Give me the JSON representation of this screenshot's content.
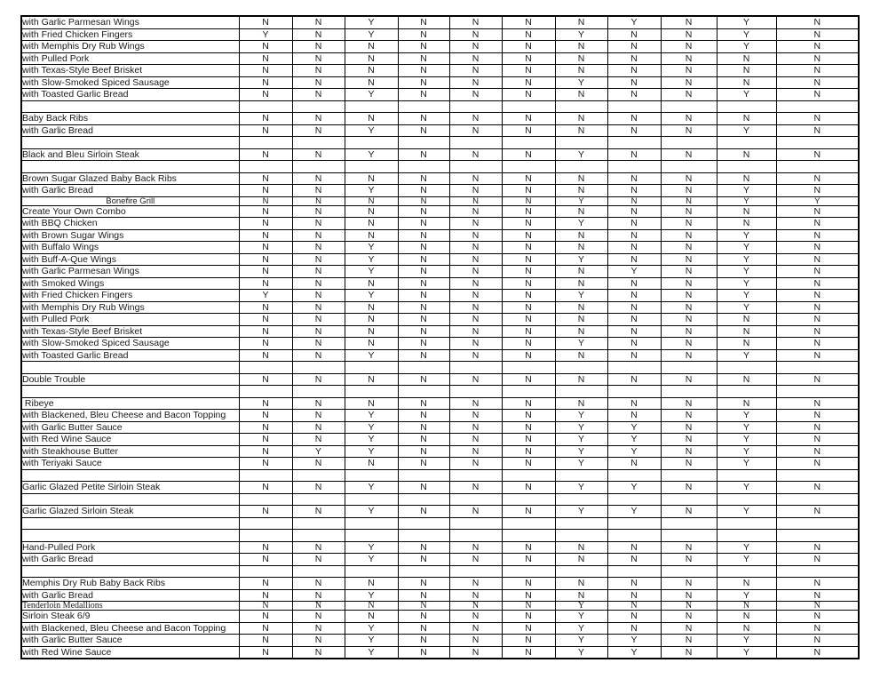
{
  "page": {
    "background_color": "#ffffff",
    "grid_color": "#000000"
  },
  "table": {
    "num_value_columns": 11,
    "rows": [
      {
        "type": "item",
        "label": "with Garlic Parmesan Wings",
        "values": [
          "N",
          "N",
          "Y",
          "N",
          "N",
          "N",
          "N",
          "Y",
          "N",
          "Y",
          "N"
        ]
      },
      {
        "type": "item",
        "label": "with Fried Chicken Fingers",
        "values": [
          "Y",
          "N",
          "Y",
          "N",
          "N",
          "N",
          "Y",
          "N",
          "N",
          "Y",
          "N"
        ]
      },
      {
        "type": "item",
        "label": "with Memphis Dry Rub Wings",
        "values": [
          "N",
          "N",
          "N",
          "N",
          "N",
          "N",
          "N",
          "N",
          "N",
          "Y",
          "N"
        ]
      },
      {
        "type": "item",
        "label": "with Pulled Pork",
        "values": [
          "N",
          "N",
          "N",
          "N",
          "N",
          "N",
          "N",
          "N",
          "N",
          "N",
          "N"
        ]
      },
      {
        "type": "item",
        "label": "with Texas-Style Beef Brisket",
        "values": [
          "N",
          "N",
          "N",
          "N",
          "N",
          "N",
          "N",
          "N",
          "N",
          "N",
          "N"
        ]
      },
      {
        "type": "item",
        "label": "with Slow-Smoked Spiced Sausage",
        "values": [
          "N",
          "N",
          "N",
          "N",
          "N",
          "N",
          "Y",
          "N",
          "N",
          "N",
          "N"
        ]
      },
      {
        "type": "item",
        "label": "with Toasted Garlic Bread",
        "values": [
          "N",
          "N",
          "Y",
          "N",
          "N",
          "N",
          "N",
          "N",
          "N",
          "Y",
          "N"
        ]
      },
      {
        "type": "blank",
        "label": ""
      },
      {
        "type": "item",
        "label": "Baby Back Ribs",
        "values": [
          "N",
          "N",
          "N",
          "N",
          "N",
          "N",
          "N",
          "N",
          "N",
          "N",
          "N"
        ]
      },
      {
        "type": "item",
        "label": "with Garlic Bread",
        "values": [
          "N",
          "N",
          "Y",
          "N",
          "N",
          "N",
          "N",
          "N",
          "N",
          "Y",
          "N"
        ]
      },
      {
        "type": "blank",
        "label": ""
      },
      {
        "type": "item",
        "label": "Black and Bleu Sirloin Steak",
        "values": [
          "N",
          "N",
          "Y",
          "N",
          "N",
          "N",
          "Y",
          "N",
          "N",
          "N",
          "N"
        ]
      },
      {
        "type": "blank",
        "label": ""
      },
      {
        "type": "item",
        "label": "Brown Sugar Glazed Baby Back Ribs",
        "values": [
          "N",
          "N",
          "N",
          "N",
          "N",
          "N",
          "N",
          "N",
          "N",
          "N",
          "N"
        ]
      },
      {
        "type": "item",
        "label": "with Garlic Bread",
        "values": [
          "N",
          "N",
          "Y",
          "N",
          "N",
          "N",
          "N",
          "N",
          "N",
          "Y",
          "N"
        ]
      },
      {
        "type": "section-center",
        "label": "Bonefire Grill",
        "values": [
          "N",
          "N",
          "N",
          "N",
          "N",
          "N",
          "Y",
          "N",
          "N",
          "Y",
          "Y"
        ]
      },
      {
        "type": "item",
        "label": "Create Your Own Combo",
        "values": [
          "N",
          "N",
          "N",
          "N",
          "N",
          "N",
          "N",
          "N",
          "N",
          "N",
          "N"
        ]
      },
      {
        "type": "item",
        "label": "with BBQ Chicken",
        "values": [
          "N",
          "N",
          "N",
          "N",
          "N",
          "N",
          "Y",
          "N",
          "N",
          "N",
          "N"
        ]
      },
      {
        "type": "item",
        "label": "with Brown Sugar Wings",
        "values": [
          "N",
          "N",
          "N",
          "N",
          "N",
          "N",
          "N",
          "N",
          "N",
          "Y",
          "N"
        ]
      },
      {
        "type": "item",
        "label": "with Buffalo Wings",
        "values": [
          "N",
          "N",
          "Y",
          "N",
          "N",
          "N",
          "N",
          "N",
          "N",
          "Y",
          "N"
        ]
      },
      {
        "type": "item",
        "label": "with Buff-A-Que Wings",
        "values": [
          "N",
          "N",
          "Y",
          "N",
          "N",
          "N",
          "Y",
          "N",
          "N",
          "Y",
          "N"
        ]
      },
      {
        "type": "item",
        "label": "with Garlic Parmesan Wings",
        "values": [
          "N",
          "N",
          "Y",
          "N",
          "N",
          "N",
          "N",
          "Y",
          "N",
          "Y",
          "N"
        ]
      },
      {
        "type": "item",
        "label": "with Smoked Wings",
        "values": [
          "N",
          "N",
          "N",
          "N",
          "N",
          "N",
          "N",
          "N",
          "N",
          "Y",
          "N"
        ]
      },
      {
        "type": "item",
        "label": "with Fried Chicken Fingers",
        "values": [
          "Y",
          "N",
          "Y",
          "N",
          "N",
          "N",
          "Y",
          "N",
          "N",
          "Y",
          "N"
        ]
      },
      {
        "type": "item",
        "label": "with Memphis Dry Rub Wings",
        "values": [
          "N",
          "N",
          "N",
          "N",
          "N",
          "N",
          "N",
          "N",
          "N",
          "Y",
          "N"
        ]
      },
      {
        "type": "item",
        "label": "with Pulled Pork",
        "values": [
          "N",
          "N",
          "N",
          "N",
          "N",
          "N",
          "N",
          "N",
          "N",
          "N",
          "N"
        ]
      },
      {
        "type": "item",
        "label": "with Texas-Style Beef Brisket",
        "values": [
          "N",
          "N",
          "N",
          "N",
          "N",
          "N",
          "N",
          "N",
          "N",
          "N",
          "N"
        ]
      },
      {
        "type": "item",
        "label": "with Slow-Smoked Spiced Sausage",
        "values": [
          "N",
          "N",
          "N",
          "N",
          "N",
          "N",
          "Y",
          "N",
          "N",
          "N",
          "N"
        ]
      },
      {
        "type": "item",
        "label": "with Toasted Garlic Bread",
        "values": [
          "N",
          "N",
          "Y",
          "N",
          "N",
          "N",
          "N",
          "N",
          "N",
          "Y",
          "N"
        ]
      },
      {
        "type": "blank",
        "label": ""
      },
      {
        "type": "item",
        "label": "Double Trouble",
        "values": [
          "N",
          "N",
          "N",
          "N",
          "N",
          "N",
          "N",
          "N",
          "N",
          "N",
          "N"
        ]
      },
      {
        "type": "blank",
        "label": ""
      },
      {
        "type": "item",
        "label": " Ribeye",
        "values": [
          "N",
          "N",
          "N",
          "N",
          "N",
          "N",
          "N",
          "N",
          "N",
          "N",
          "N"
        ]
      },
      {
        "type": "item",
        "label": "with Blackened, Bleu Cheese and Bacon Topping",
        "values": [
          "N",
          "N",
          "Y",
          "N",
          "N",
          "N",
          "Y",
          "N",
          "N",
          "Y",
          "N"
        ]
      },
      {
        "type": "item",
        "label": "with Garlic Butter Sauce",
        "values": [
          "N",
          "N",
          "Y",
          "N",
          "N",
          "N",
          "Y",
          "Y",
          "N",
          "Y",
          "N"
        ]
      },
      {
        "type": "item",
        "label": "with Red Wine Sauce",
        "values": [
          "N",
          "N",
          "Y",
          "N",
          "N",
          "N",
          "Y",
          "Y",
          "N",
          "Y",
          "N"
        ]
      },
      {
        "type": "item",
        "label": "with Steakhouse Butter",
        "values": [
          "N",
          "Y",
          "Y",
          "N",
          "N",
          "N",
          "Y",
          "Y",
          "N",
          "Y",
          "N"
        ]
      },
      {
        "type": "item",
        "label": "with Teriyaki Sauce",
        "values": [
          "N",
          "N",
          "N",
          "N",
          "N",
          "N",
          "Y",
          "N",
          "N",
          "Y",
          "N"
        ]
      },
      {
        "type": "blank",
        "label": ""
      },
      {
        "type": "item",
        "label": "Garlic Glazed Petite Sirloin Steak",
        "values": [
          "N",
          "N",
          "Y",
          "N",
          "N",
          "N",
          "Y",
          "Y",
          "N",
          "Y",
          "N"
        ]
      },
      {
        "type": "blank",
        "label": ""
      },
      {
        "type": "item",
        "label": "Garlic Glazed Sirloin Steak",
        "values": [
          "N",
          "N",
          "Y",
          "N",
          "N",
          "N",
          "Y",
          "Y",
          "N",
          "Y",
          "N"
        ]
      },
      {
        "type": "blank",
        "label": ""
      },
      {
        "type": "blank",
        "label": ""
      },
      {
        "type": "item",
        "label": "Hand-Pulled Pork",
        "values": [
          "N",
          "N",
          "Y",
          "N",
          "N",
          "N",
          "N",
          "N",
          "N",
          "Y",
          "N"
        ]
      },
      {
        "type": "item",
        "label": "with Garlic Bread",
        "values": [
          "N",
          "N",
          "Y",
          "N",
          "N",
          "N",
          "N",
          "N",
          "N",
          "Y",
          "N"
        ]
      },
      {
        "type": "blank",
        "label": ""
      },
      {
        "type": "item",
        "label": "Memphis Dry Rub Baby Back Ribs",
        "values": [
          "N",
          "N",
          "N",
          "N",
          "N",
          "N",
          "N",
          "N",
          "N",
          "N",
          "N"
        ]
      },
      {
        "type": "item",
        "label": "with Garlic Bread",
        "values": [
          "N",
          "N",
          "Y",
          "N",
          "N",
          "N",
          "N",
          "N",
          "N",
          "Y",
          "N"
        ]
      },
      {
        "type": "section-serif",
        "label": "Tenderloin Medallions",
        "values": [
          "N",
          "N",
          "N",
          "N",
          "N",
          "N",
          "Y",
          "N",
          "N",
          "N",
          "N"
        ]
      },
      {
        "type": "item",
        "label": "Sirloin Steak 6/9",
        "values": [
          "N",
          "N",
          "N",
          "N",
          "N",
          "N",
          "Y",
          "N",
          "N",
          "N",
          "N"
        ]
      },
      {
        "type": "item",
        "label": "with Blackened, Bleu Cheese and Bacon Topping",
        "values": [
          "N",
          "N",
          "Y",
          "N",
          "N",
          "N",
          "Y",
          "N",
          "N",
          "N",
          "N"
        ]
      },
      {
        "type": "item",
        "label": "with Garlic Butter Sauce",
        "values": [
          "N",
          "N",
          "Y",
          "N",
          "N",
          "N",
          "Y",
          "Y",
          "N",
          "Y",
          "N"
        ]
      },
      {
        "type": "item",
        "label": "with Red Wine Sauce",
        "values": [
          "N",
          "N",
          "Y",
          "N",
          "N",
          "N",
          "Y",
          "Y",
          "N",
          "Y",
          "N"
        ]
      }
    ]
  }
}
